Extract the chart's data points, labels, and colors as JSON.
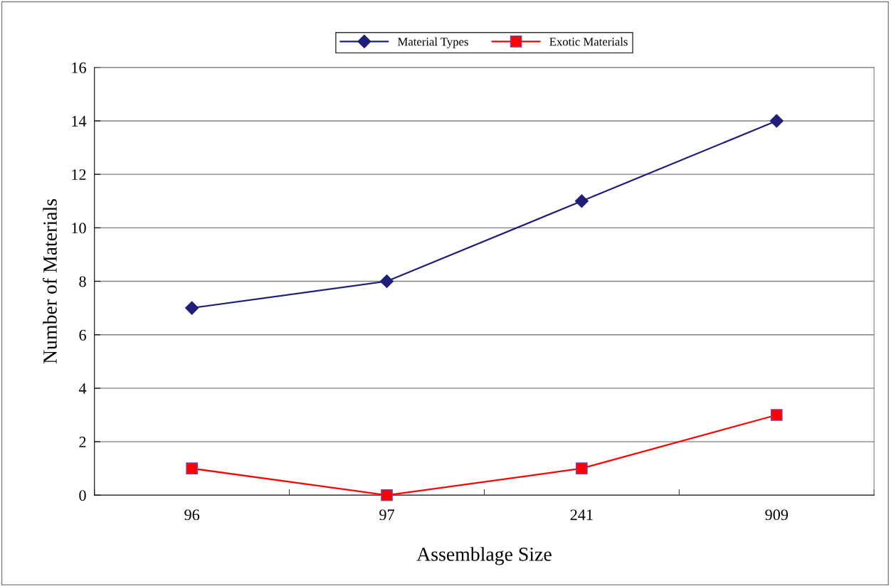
{
  "chart_data": {
    "type": "line",
    "xlabel": "Assemblage Size",
    "ylabel": "Number of Materials",
    "categories": [
      "96",
      "97",
      "241",
      "909"
    ],
    "series": [
      {
        "name": "Material Types",
        "color": "#1f1f78",
        "marker": "diamond",
        "values": [
          7,
          8,
          11,
          14
        ]
      },
      {
        "name": "Exotic Materials",
        "color": "#ff0000",
        "marker": "square",
        "values": [
          1,
          0,
          1,
          3
        ]
      }
    ],
    "ylim": [
      0,
      16
    ],
    "yticks": [
      0,
      2,
      4,
      6,
      8,
      10,
      12,
      14,
      16
    ],
    "grid": "y",
    "legend": "top"
  }
}
